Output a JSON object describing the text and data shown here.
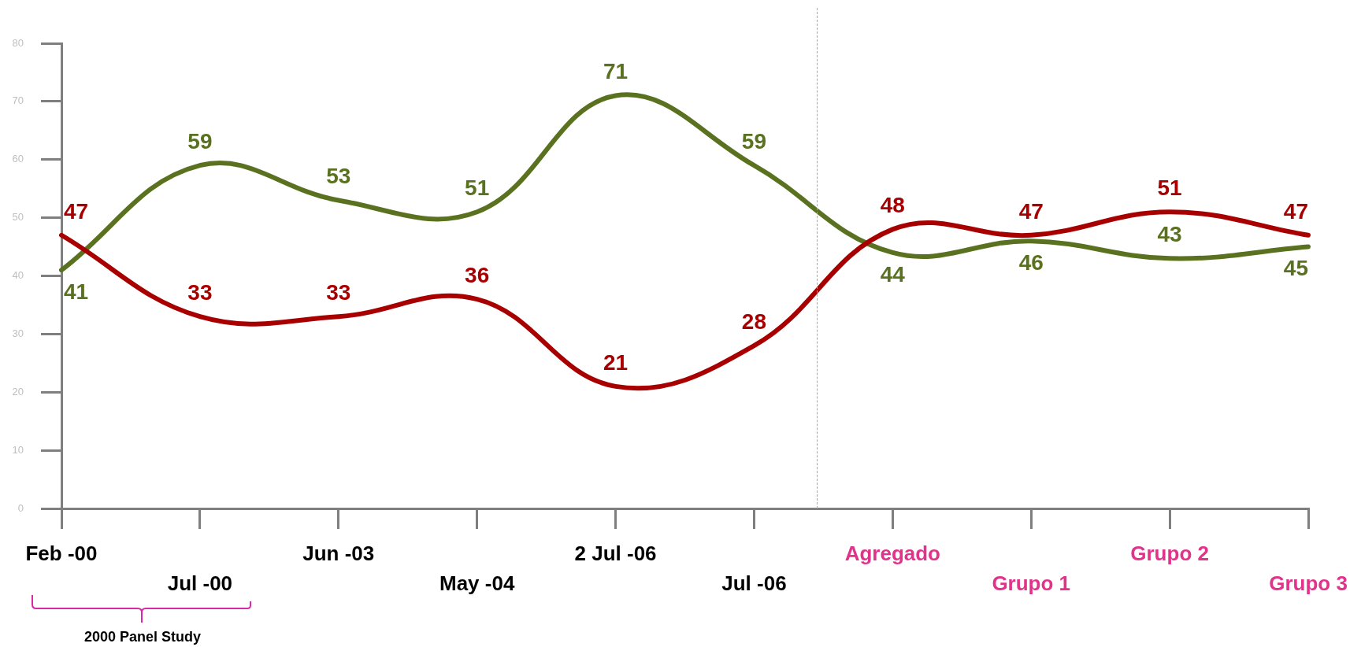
{
  "chart_data": {
    "type": "line",
    "categories": [
      "Feb -00",
      "Jul -00",
      "Jun -03",
      "May -04",
      "2 Jul -06",
      "Jul -06",
      "Agregado",
      "Grupo 1",
      "Grupo 2",
      "Grupo 3"
    ],
    "series": [
      {
        "color": "#a80000",
        "values": [
          47,
          33,
          33,
          36,
          21,
          28,
          48,
          47,
          51,
          47
        ]
      },
      {
        "color": "#5a7220",
        "values": [
          41,
          59,
          53,
          51,
          71,
          59,
          44,
          46,
          43,
          45
        ]
      }
    ],
    "ylim": [
      0,
      80
    ],
    "yticks": [
      0,
      10,
      20,
      30,
      40,
      50,
      60,
      70,
      80
    ],
    "data_labels": true,
    "legend": false,
    "grid": false,
    "marker": "none",
    "line_style": "solid",
    "annotations": [
      "2000 Panel Study"
    ]
  }
}
